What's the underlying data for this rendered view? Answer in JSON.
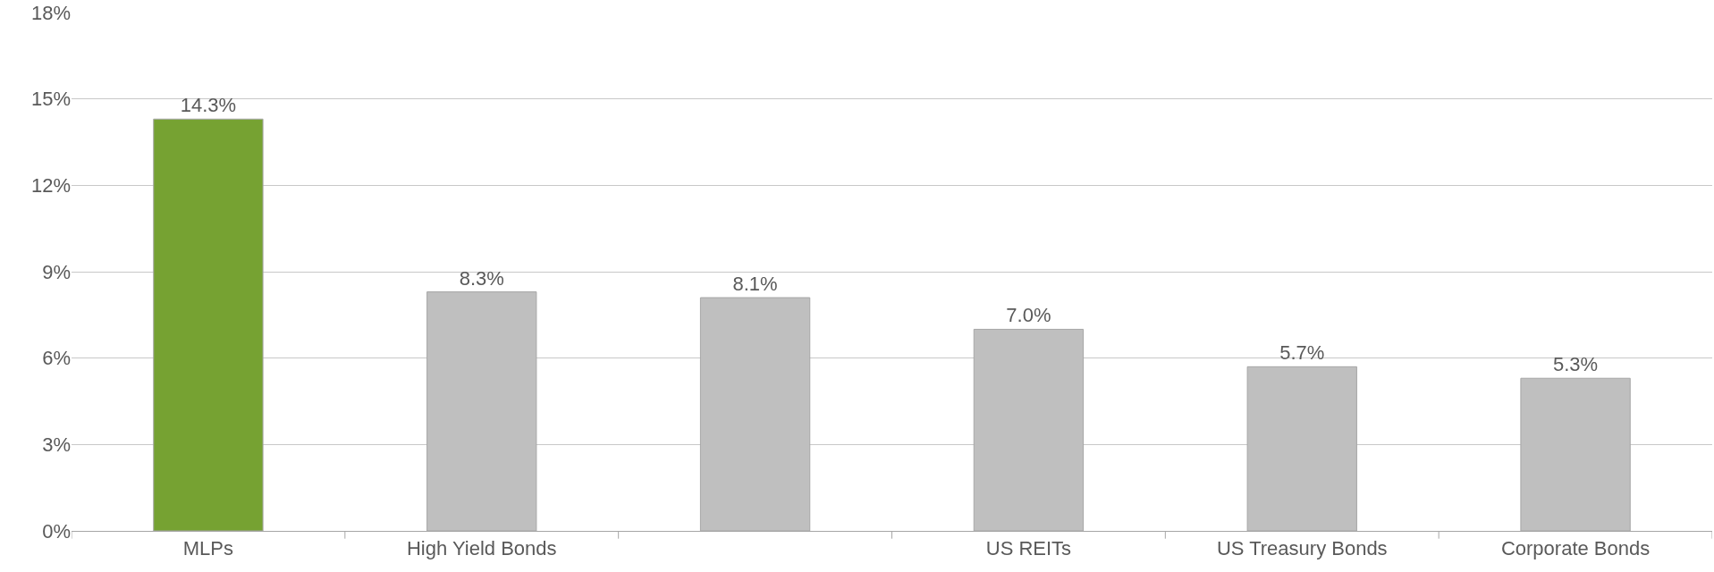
{
  "chart_data": {
    "type": "bar",
    "categories": [
      "MLPs",
      "High Yield Bonds",
      null,
      "US REITs",
      "US Treasury Bonds",
      "Corporate Bonds"
    ],
    "values": [
      14.3,
      8.3,
      8.1,
      7.0,
      5.7,
      5.3
    ],
    "colors": [
      "#76a232",
      "#bfbfbf",
      "#bfbfbf",
      "#bfbfbf",
      "#bfbfbf",
      "#bfbfbf"
    ],
    "value_labels": [
      "14.3%",
      "8.3%",
      "8.1%",
      "7.0%",
      "5.7%",
      "5.3%"
    ],
    "ylim": [
      0,
      18
    ],
    "yticks": [
      {
        "value": 0,
        "label": "0%"
      },
      {
        "value": 3,
        "label": "3%"
      },
      {
        "value": 6,
        "label": "6%"
      },
      {
        "value": 9,
        "label": "9%"
      },
      {
        "value": 12,
        "label": "12%"
      },
      {
        "value": 15,
        "label": "15%"
      },
      {
        "value": 18,
        "label": "18%"
      }
    ],
    "grid": "y"
  }
}
